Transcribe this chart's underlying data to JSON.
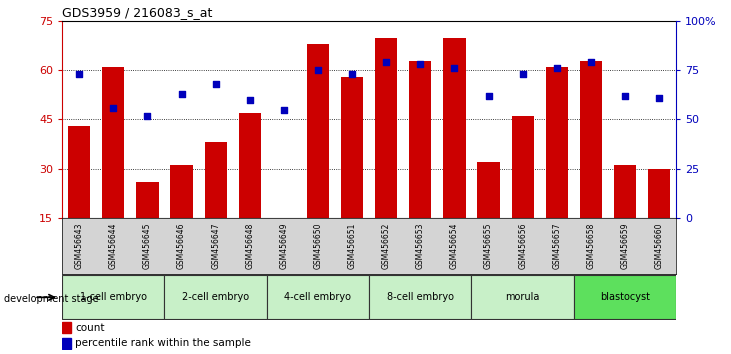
{
  "title": "GDS3959 / 216083_s_at",
  "samples": [
    "GSM456643",
    "GSM456644",
    "GSM456645",
    "GSM456646",
    "GSM456647",
    "GSM456648",
    "GSM456649",
    "GSM456650",
    "GSM456651",
    "GSM456652",
    "GSM456653",
    "GSM456654",
    "GSM456655",
    "GSM456656",
    "GSM456657",
    "GSM456658",
    "GSM456659",
    "GSM456660"
  ],
  "counts": [
    43,
    61,
    26,
    31,
    38,
    47,
    15,
    68,
    58,
    70,
    63,
    70,
    32,
    46,
    61,
    63,
    31,
    30
  ],
  "percentiles": [
    73,
    56,
    52,
    63,
    68,
    60,
    55,
    75,
    73,
    79,
    78,
    76,
    62,
    73,
    76,
    79,
    62,
    61
  ],
  "stages": [
    {
      "label": "1-cell embryo",
      "start": 0,
      "end": 3
    },
    {
      "label": "2-cell embryo",
      "start": 3,
      "end": 6
    },
    {
      "label": "4-cell embryo",
      "start": 6,
      "end": 9
    },
    {
      "label": "8-cell embryo",
      "start": 9,
      "end": 12
    },
    {
      "label": "morula",
      "start": 12,
      "end": 15
    },
    {
      "label": "blastocyst",
      "start": 15,
      "end": 18
    }
  ],
  "stage_colors": [
    "#c8f0c8",
    "#c8f0c8",
    "#c8f0c8",
    "#c8f0c8",
    "#c8f0c8",
    "#5de05d"
  ],
  "ylim_left": [
    15,
    75
  ],
  "ylim_right": [
    0,
    100
  ],
  "yticks_left": [
    15,
    30,
    45,
    60,
    75
  ],
  "yticks_right": [
    0,
    25,
    50,
    75,
    100
  ],
  "bar_color": "#CC0000",
  "dot_color": "#0000BB",
  "grid_color": "#000000",
  "dev_stage_label": "development stage",
  "legend_count": "count",
  "legend_pct": "percentile rank within the sample"
}
